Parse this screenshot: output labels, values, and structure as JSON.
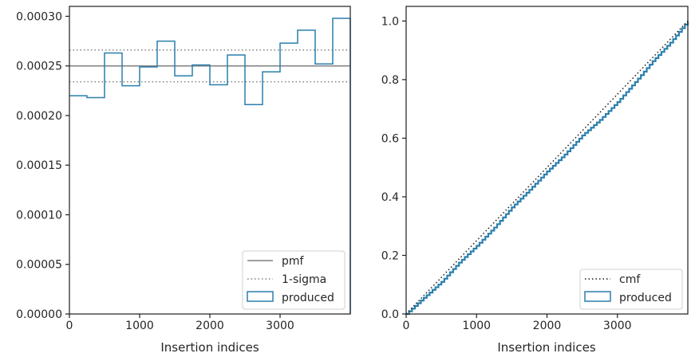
{
  "chart_data": [
    {
      "type": "histogram",
      "xlabel": "Insertion indices",
      "ylabel": "",
      "xlim": [
        0,
        4000
      ],
      "ylim": [
        0,
        0.00031
      ],
      "xticks": [
        0,
        1000,
        2000,
        3000
      ],
      "yticks": [
        0,
        5e-05,
        0.0001,
        0.00015,
        0.0002,
        0.00025,
        0.0003
      ],
      "ytick_labels": [
        "0.00000",
        "0.00005",
        "0.00010",
        "0.00015",
        "0.00020",
        "0.00025",
        "0.00030"
      ],
      "bin_edges": [
        0,
        250,
        500,
        750,
        1000,
        1250,
        1500,
        1750,
        2000,
        2250,
        2500,
        2750,
        3000,
        3250,
        3500,
        3750,
        4000
      ],
      "produced": [
        0.00022,
        0.000218,
        0.000263,
        0.00023,
        0.000249,
        0.000275,
        0.00024,
        0.000251,
        0.000231,
        0.000261,
        0.000211,
        0.000244,
        0.000273,
        0.000286,
        0.000252,
        0.000298
      ],
      "pmf": 0.00025,
      "sigma_band": [
        0.000234,
        0.000266
      ],
      "legend": {
        "placement": "lower right",
        "entries": [
          {
            "label": "pmf",
            "style": "solid-gray"
          },
          {
            "label": "1-sigma",
            "style": "dotted-gray"
          },
          {
            "label": "produced",
            "style": "step-blue"
          }
        ]
      },
      "colors": {
        "produced": "#2a7fad",
        "reference": "#808080"
      }
    },
    {
      "type": "line",
      "xlabel": "Insertion indices",
      "ylabel": "",
      "xlim": [
        0,
        4000
      ],
      "ylim": [
        0,
        1.05
      ],
      "xticks": [
        0,
        1000,
        2000,
        3000
      ],
      "yticks": [
        0,
        0.2,
        0.4,
        0.6,
        0.8,
        1.0
      ],
      "ytick_labels": [
        "0.0",
        "0.2",
        "0.4",
        "0.6",
        "0.8",
        "1.0"
      ],
      "cmf": {
        "x": [
          0,
          4000
        ],
        "y": [
          0,
          1.0
        ]
      },
      "produced": {
        "x": [
          0,
          250,
          500,
          750,
          1000,
          1250,
          1500,
          1750,
          2000,
          2250,
          2500,
          2750,
          3000,
          3250,
          3500,
          3750,
          4000
        ],
        "y": [
          0,
          0.055,
          0.1095,
          0.1753,
          0.2328,
          0.295,
          0.3638,
          0.4238,
          0.4865,
          0.5443,
          0.6095,
          0.6623,
          0.7233,
          0.7915,
          0.863,
          0.926,
          1.0
        ]
      },
      "legend": {
        "placement": "lower right",
        "entries": [
          {
            "label": "cmf",
            "style": "dotted-black"
          },
          {
            "label": "produced",
            "style": "step-blue"
          }
        ]
      },
      "colors": {
        "produced": "#2a7fad",
        "reference": "#1a1a1a"
      }
    }
  ]
}
